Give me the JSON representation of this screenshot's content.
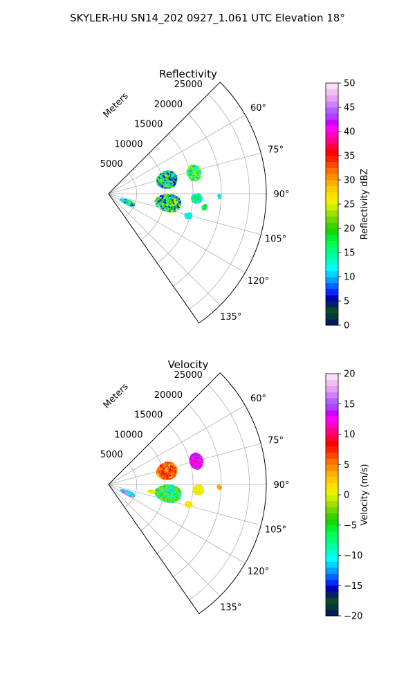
{
  "suptitle": "SKYLER-HU  SN14_202  0927_1.061 UTC Elevation 18°",
  "chart_data": [
    {
      "type": "polar-sector",
      "title": "Reflectivity",
      "radial_axis_label": "Meters",
      "radial_ticks": [
        "5000",
        "10000",
        "15000",
        "20000",
        "25000"
      ],
      "azimuth_ticks": [
        "60°",
        "75°",
        "90°",
        "105°",
        "120°",
        "135°"
      ],
      "azimuth_range_deg": [
        45,
        145
      ],
      "range_max_m": 28000,
      "colorbar": {
        "label": "Reflectivity dBZ",
        "min": 0,
        "max": 50,
        "ticks": [
          "0",
          "5",
          "10",
          "15",
          "20",
          "25",
          "30",
          "35",
          "40",
          "45",
          "50"
        ],
        "colors": [
          "#001a5a",
          "#003a3a",
          "#0a4a2a",
          "#08206a",
          "#0000b4",
          "#0028ff",
          "#0064ff",
          "#00a0ff",
          "#00d4ff",
          "#00ffff",
          "#00ffd0",
          "#00ffa0",
          "#00ff78",
          "#00ff50",
          "#00f030",
          "#14d800",
          "#40d000",
          "#70d800",
          "#a0e000",
          "#c8f000",
          "#f0f000",
          "#ffe000",
          "#ffc800",
          "#ffb000",
          "#ff9000",
          "#ff7000",
          "#ff4800",
          "#ff2000",
          "#ff0000",
          "#ff0040",
          "#ff0080",
          "#ff00c0",
          "#ff00ff",
          "#d000ff",
          "#b040ff",
          "#b060ff",
          "#d080ff",
          "#e8a0f0",
          "#f0c0f0",
          "#f8e0f8"
        ]
      },
      "echoes": [
        {
          "az_deg": 75.5,
          "range_m": 10500,
          "half_width_deg": 8,
          "depth_m": 3500,
          "palette": [
            "#20e000",
            "#60d800",
            "#a0e800",
            "#00ffb0",
            "#00e0ff",
            "#0050ff",
            "#0000b4"
          ]
        },
        {
          "az_deg": 75.5,
          "range_m": 15500,
          "half_width_deg": 5,
          "depth_m": 2400,
          "palette": [
            "#00ffb0",
            "#20e000",
            "#c0f000",
            "#00e0ff"
          ]
        },
        {
          "az_deg": 98,
          "range_m": 10500,
          "half_width_deg": 8,
          "depth_m": 4500,
          "palette": [
            "#20e000",
            "#60d800",
            "#c8f000",
            "#f0f000",
            "#00ffb0",
            "#00c0ff",
            "#0028ff",
            "#0000b4"
          ]
        },
        {
          "az_deg": 92.5,
          "range_m": 15500,
          "half_width_deg": 3,
          "depth_m": 1800,
          "palette": [
            "#00ffb0",
            "#20e000",
            "#00e0ff"
          ]
        },
        {
          "az_deg": 105,
          "range_m": 14500,
          "half_width_deg": 2,
          "depth_m": 1200,
          "palette": [
            "#00e0ff",
            "#00ffb0"
          ]
        },
        {
          "az_deg": 113,
          "range_m": 3500,
          "half_width_deg": 5,
          "depth_m": 2600,
          "palette": [
            "#60d800",
            "#00ffb0",
            "#00e0ff",
            "#0050ff"
          ]
        },
        {
          "az_deg": 91,
          "range_m": 19500,
          "half_width_deg": 1,
          "depth_m": 600,
          "palette": [
            "#00ffb0",
            "#00e0ff"
          ]
        },
        {
          "az_deg": 97.5,
          "range_m": 17000,
          "half_width_deg": 1.5,
          "depth_m": 800,
          "palette": [
            "#20e000",
            "#00ffb0"
          ]
        }
      ]
    },
    {
      "type": "polar-sector",
      "title": "Velocity",
      "radial_axis_label": "Meters",
      "radial_ticks": [
        "5000",
        "10000",
        "15000",
        "20000",
        "25000"
      ],
      "azimuth_ticks": [
        "60°",
        "75°",
        "90°",
        "105°",
        "120°",
        "135°"
      ],
      "azimuth_range_deg": [
        45,
        145
      ],
      "range_max_m": 28000,
      "colorbar": {
        "label": "Velocity (m/s)",
        "min": -20,
        "max": 20,
        "ticks": [
          "−20",
          "−15",
          "−10",
          "−5",
          "0",
          "5",
          "10",
          "15",
          "20"
        ],
        "colors": [
          "#001a5a",
          "#003a3a",
          "#0a4a2a",
          "#08206a",
          "#0000b4",
          "#0028ff",
          "#0064ff",
          "#00a0ff",
          "#00d4ff",
          "#00ffff",
          "#00ffd0",
          "#00ffa0",
          "#00ff78",
          "#00ff50",
          "#00f030",
          "#14d800",
          "#40d000",
          "#70d800",
          "#a0e000",
          "#c8f000",
          "#f0f000",
          "#ffe000",
          "#ffc800",
          "#ffb000",
          "#ff9000",
          "#ff7000",
          "#ff4800",
          "#ff2000",
          "#ff0000",
          "#ff0040",
          "#ff0080",
          "#ff00c0",
          "#ff00ff",
          "#d000ff",
          "#b040ff",
          "#b060ff",
          "#d080ff",
          "#e8a0f0",
          "#f0c0f0",
          "#f8e0f8"
        ]
      },
      "echoes": [
        {
          "az_deg": 76,
          "range_m": 10500,
          "half_width_deg": 8,
          "depth_m": 3500,
          "palette": [
            "#ff2000",
            "#ff4800",
            "#ff7000",
            "#ff9000",
            "#ffc800",
            "#ff0000"
          ]
        },
        {
          "az_deg": 74.5,
          "range_m": 16000,
          "half_width_deg": 5,
          "depth_m": 2200,
          "palette": [
            "#ff00ff",
            "#d000ff",
            "#ff00c0",
            "#b040ff"
          ]
        },
        {
          "az_deg": 98,
          "range_m": 10500,
          "half_width_deg": 8,
          "depth_m": 4500,
          "palette": [
            "#40d000",
            "#70d800",
            "#a0e000",
            "#00ff78",
            "#00ffd0",
            "#00e0ff"
          ]
        },
        {
          "az_deg": 93,
          "range_m": 15800,
          "half_width_deg": 3,
          "depth_m": 1800,
          "palette": [
            "#ffe000",
            "#f0f000",
            "#c8f000"
          ]
        },
        {
          "az_deg": 103.5,
          "range_m": 14500,
          "half_width_deg": 2,
          "depth_m": 1200,
          "palette": [
            "#ffe000",
            "#f0f000"
          ]
        },
        {
          "az_deg": 113,
          "range_m": 3500,
          "half_width_deg": 5,
          "depth_m": 2600,
          "palette": [
            "#d080ff",
            "#b060ff",
            "#00d4ff",
            "#00ffd0"
          ]
        },
        {
          "az_deg": 91,
          "range_m": 19500,
          "half_width_deg": 1,
          "depth_m": 600,
          "palette": [
            "#ff9000",
            "#ffb000"
          ]
        },
        {
          "az_deg": 98.5,
          "range_m": 7500,
          "half_width_deg": 1.5,
          "depth_m": 1200,
          "palette": [
            "#c8f000",
            "#f0f000"
          ]
        }
      ]
    }
  ]
}
